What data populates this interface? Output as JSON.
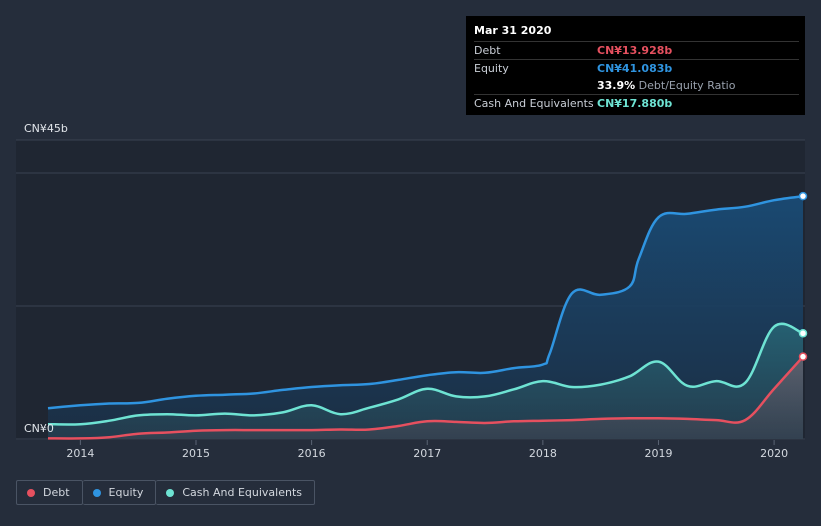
{
  "tooltip": {
    "date": "Mar 31 2020",
    "debt_label": "Debt",
    "debt_value": "CN¥13.928b",
    "equity_label": "Equity",
    "equity_value": "CN¥41.083b",
    "ratio_value": "33.9%",
    "ratio_label": "Debt/Equity Ratio",
    "cash_label": "Cash And Equivalents",
    "cash_value": "CN¥17.880b"
  },
  "legend": {
    "debt": "Debt",
    "equity": "Equity",
    "cash": "Cash And Equivalents"
  },
  "colors": {
    "background": "#252d3b",
    "debt": "#e6505f",
    "equity": "#2f94e0",
    "cash": "#6ee3d3"
  },
  "chart_data": {
    "type": "area",
    "title": "",
    "ylim": [
      0,
      45
    ],
    "y_unit": "CN¥ billions",
    "y_tick_labels": [
      "CN¥45b",
      "CN¥0"
    ],
    "x_tick_labels": [
      "2014",
      "2015",
      "2016",
      "2017",
      "2018",
      "2019",
      "2020"
    ],
    "x_ticks": [
      2014,
      2015,
      2016,
      2017,
      2018,
      2019,
      2020
    ],
    "xlim": [
      2013.72,
      2020.25
    ],
    "series": [
      {
        "name": "Equity",
        "x": [
          2013.72,
          2014.0,
          2014.25,
          2014.5,
          2014.75,
          2015.0,
          2015.25,
          2015.5,
          2015.75,
          2016.0,
          2016.25,
          2016.5,
          2016.75,
          2017.0,
          2017.25,
          2017.5,
          2017.75,
          2018.0,
          2018.06,
          2018.25,
          2018.5,
          2018.75,
          2018.83,
          2019.0,
          2019.25,
          2019.5,
          2019.75,
          2020.0,
          2020.25
        ],
        "values": [
          5.2,
          5.7,
          6.0,
          6.1,
          6.8,
          7.3,
          7.5,
          7.7,
          8.3,
          8.8,
          9.1,
          9.3,
          10.0,
          10.8,
          11.3,
          11.2,
          12.0,
          12.6,
          14.5,
          24.6,
          24.4,
          25.8,
          30.5,
          37.5,
          38.1,
          38.8,
          39.3,
          40.4,
          41.083
        ]
      },
      {
        "name": "Cash And Equivalents",
        "x": [
          2013.72,
          2014.0,
          2014.25,
          2014.5,
          2014.75,
          2015.0,
          2015.25,
          2015.5,
          2015.75,
          2016.0,
          2016.25,
          2016.5,
          2016.75,
          2017.0,
          2017.25,
          2017.5,
          2017.75,
          2018.0,
          2018.25,
          2018.5,
          2018.75,
          2019.0,
          2019.25,
          2019.5,
          2019.75,
          2020.0,
          2020.25
        ],
        "values": [
          2.5,
          2.5,
          3.1,
          4.0,
          4.2,
          4.0,
          4.3,
          4.0,
          4.5,
          5.7,
          4.2,
          5.3,
          6.7,
          8.5,
          7.2,
          7.2,
          8.4,
          9.8,
          8.8,
          9.2,
          10.6,
          13.1,
          9.0,
          9.8,
          9.5,
          19.0,
          17.88
        ]
      },
      {
        "name": "Debt",
        "x": [
          2013.72,
          2014.0,
          2014.25,
          2014.5,
          2014.75,
          2015.0,
          2015.25,
          2015.5,
          2015.75,
          2016.0,
          2016.25,
          2016.5,
          2016.75,
          2017.0,
          2017.25,
          2017.5,
          2017.75,
          2018.0,
          2018.25,
          2018.5,
          2018.75,
          2019.0,
          2019.25,
          2019.5,
          2019.75,
          2020.0,
          2020.25
        ],
        "values": [
          0.1,
          0.1,
          0.3,
          0.9,
          1.1,
          1.4,
          1.5,
          1.5,
          1.5,
          1.5,
          1.6,
          1.6,
          2.2,
          3.0,
          2.9,
          2.7,
          3.0,
          3.1,
          3.2,
          3.4,
          3.5,
          3.5,
          3.4,
          3.2,
          3.2,
          8.5,
          13.928
        ]
      }
    ]
  }
}
